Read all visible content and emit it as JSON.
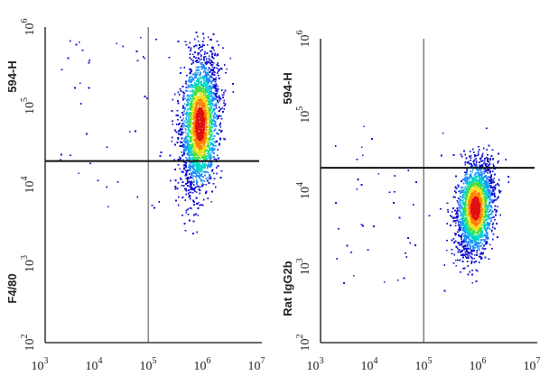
{
  "chart_data": [
    {
      "type": "scatter",
      "scale": "log",
      "title": "",
      "ylabel_top": "594-H",
      "ylabel_bottom": "F4/80",
      "xlim": [
        1000,
        10000000
      ],
      "ylim": [
        100,
        1000000
      ],
      "x_ticks": [
        {
          "base": "10",
          "exp": "3"
        },
        {
          "base": "10",
          "exp": "4"
        },
        {
          "base": "10",
          "exp": "5"
        },
        {
          "base": "10",
          "exp": "6"
        },
        {
          "base": "10",
          "exp": "7"
        }
      ],
      "y_ticks": [
        {
          "base": "10",
          "exp": "2"
        },
        {
          "base": "10",
          "exp": "3"
        },
        {
          "base": "10",
          "exp": "4"
        },
        {
          "base": "10",
          "exp": "5"
        },
        {
          "base": "10",
          "exp": "6"
        }
      ],
      "gate": {
        "x": 80000,
        "y": 20000
      },
      "population": {
        "center_x": 700000,
        "center_y": 60000,
        "n_points": 2600
      },
      "density_colors": [
        "#1010d0",
        "#1e90ff",
        "#00d7c8",
        "#40e040",
        "#f0e020",
        "#ff8000",
        "#e01010"
      ]
    },
    {
      "type": "scatter",
      "scale": "log",
      "title": "",
      "ylabel_top": "594-H",
      "ylabel_bottom": "Rat IgG2b",
      "xlim": [
        1000,
        10000000
      ],
      "ylim": [
        100,
        1000000
      ],
      "x_ticks": [
        {
          "base": "10",
          "exp": "3"
        },
        {
          "base": "10",
          "exp": "4"
        },
        {
          "base": "10",
          "exp": "5"
        },
        {
          "base": "10",
          "exp": "6"
        },
        {
          "base": "10",
          "exp": "7"
        }
      ],
      "y_ticks": [
        {
          "base": "10",
          "exp": "2"
        },
        {
          "base": "10",
          "exp": "3"
        },
        {
          "base": "10",
          "exp": "4"
        },
        {
          "base": "10",
          "exp": "5"
        },
        {
          "base": "10",
          "exp": "6"
        }
      ],
      "gate": {
        "x": 80000,
        "y": 20000
      },
      "population": {
        "center_x": 700000,
        "center_y": 6000,
        "n_points": 2200
      },
      "density_colors": [
        "#1010d0",
        "#1e90ff",
        "#00d7c8",
        "#40e040",
        "#f0e020",
        "#ff8000",
        "#e01010"
      ]
    }
  ]
}
